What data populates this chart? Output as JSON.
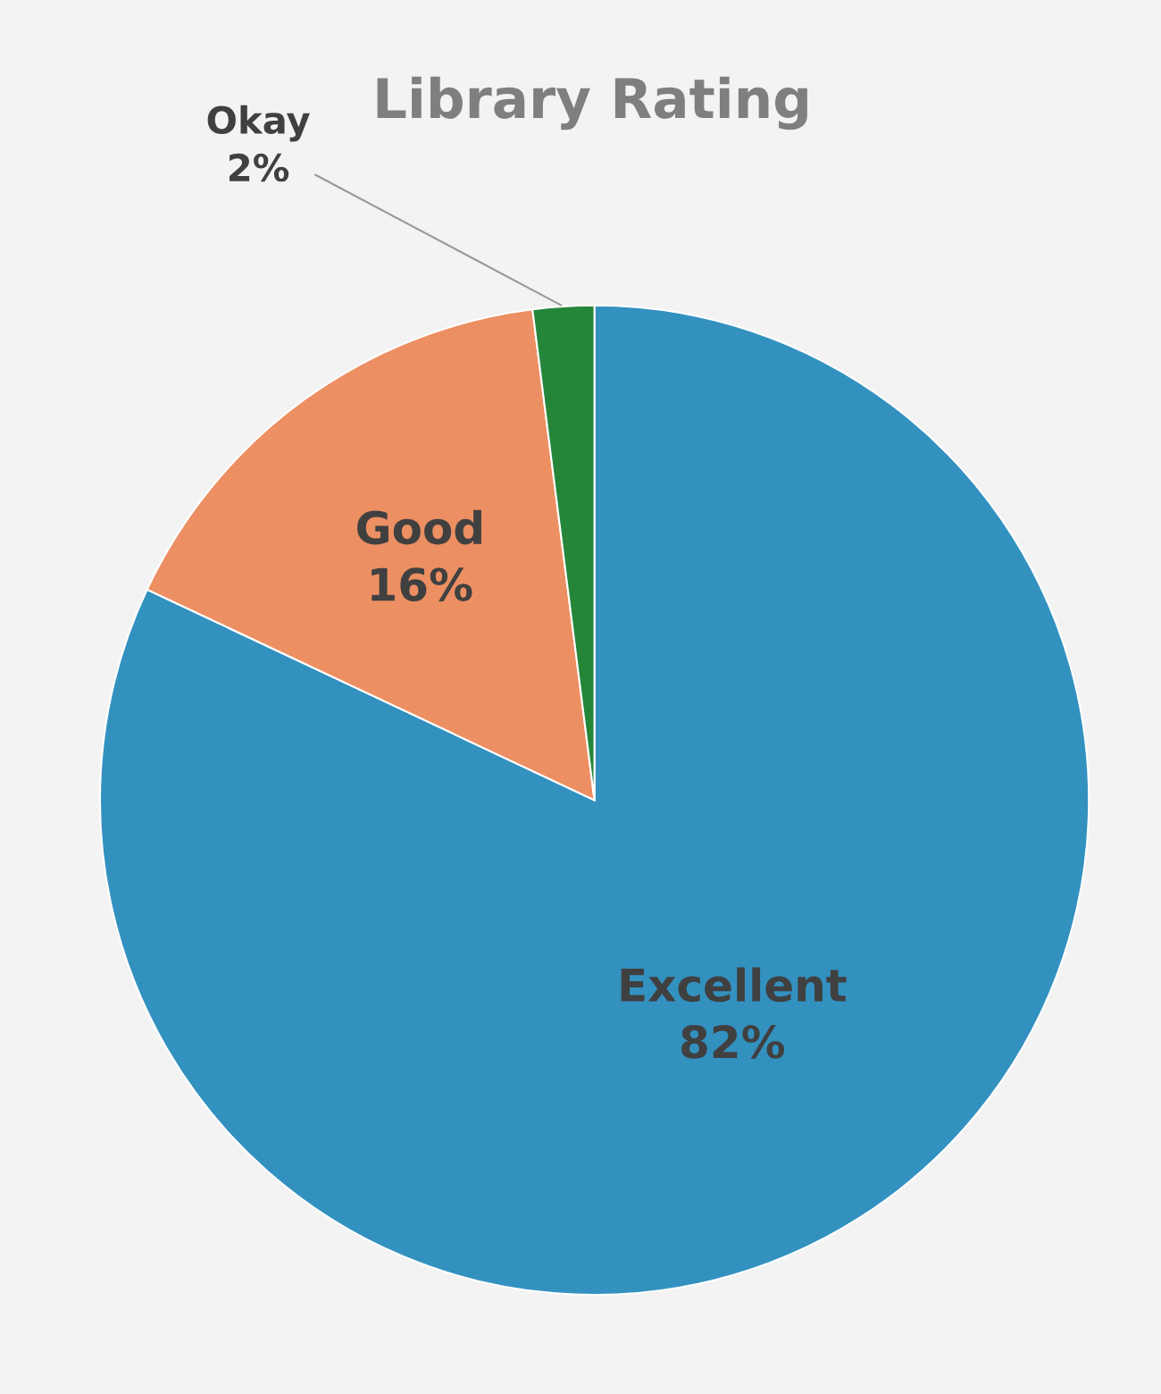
{
  "chart_data": {
    "type": "pie",
    "title": "Library Rating",
    "categories": [
      "Excellent",
      "Good",
      "Okay"
    ],
    "values": [
      82,
      16,
      2
    ],
    "value_labels": [
      "82%",
      "16%",
      "2%"
    ],
    "colors": [
      "#3391c0",
      "#ec8f62",
      "#25863a"
    ],
    "legend": false
  }
}
